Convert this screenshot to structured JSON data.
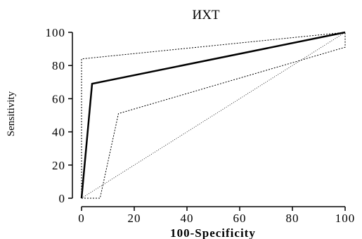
{
  "chart_data": {
    "type": "line",
    "title": "ИХТ",
    "xlabel": "100-Specificity",
    "ylabel": "Sensitivity",
    "xlim": [
      0,
      100
    ],
    "ylim": [
      0,
      100
    ],
    "x_ticks": [
      0,
      20,
      40,
      60,
      80,
      100
    ],
    "y_ticks": [
      0,
      20,
      40,
      60,
      80,
      100
    ],
    "grid": false,
    "legend": "none",
    "series": [
      {
        "style": "solid-thick",
        "color": "#000000",
        "points": [
          [
            0,
            0
          ],
          [
            4,
            69
          ],
          [
            100,
            100
          ]
        ]
      },
      {
        "style": "dotted",
        "color": "#000000",
        "points": [
          [
            0,
            0
          ],
          [
            0,
            84
          ],
          [
            100,
            100
          ]
        ]
      },
      {
        "style": "dotted",
        "color": "#000000",
        "points": [
          [
            0,
            0
          ],
          [
            7,
            0
          ],
          [
            14,
            51
          ],
          [
            100,
            91
          ],
          [
            100,
            100
          ]
        ]
      },
      {
        "style": "dotted-thin",
        "color": "#000000",
        "points": [
          [
            0,
            0
          ],
          [
            100,
            100
          ]
        ]
      }
    ]
  }
}
